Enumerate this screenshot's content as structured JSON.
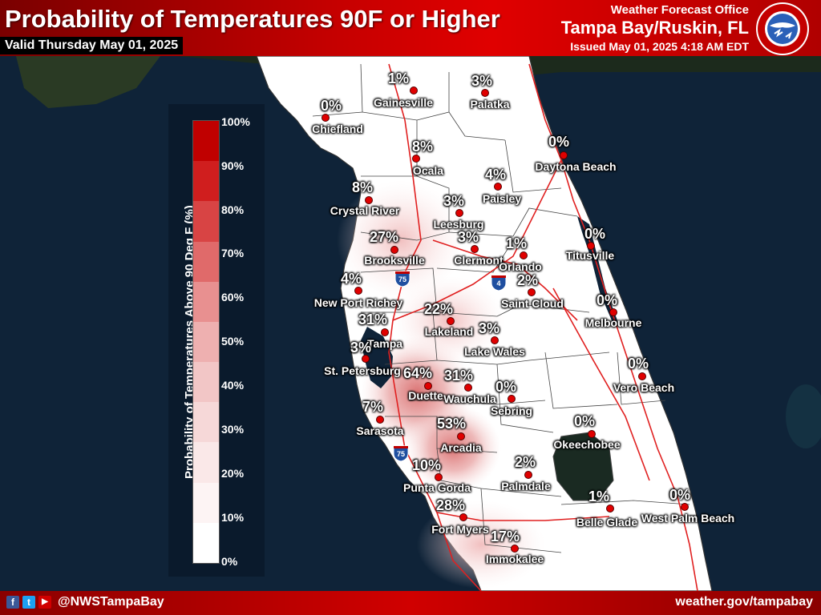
{
  "header": {
    "title": "Probability of Temperatures 90F or Higher",
    "valid": "Valid Thursday May 01, 2025",
    "office_line1": "Weather Forecast Office",
    "office_line2": "Tampa Bay/Ruskin, FL",
    "issued": "Issued May 01, 2025 4:18 AM EDT",
    "logo_icon": "nws-logo-icon"
  },
  "legend": {
    "title": "Probability of Temperatures Above 90 Deg F (%)",
    "labels": [
      "100%",
      "90%",
      "80%",
      "70%",
      "60%",
      "50%",
      "40%",
      "30%",
      "20%",
      "10%",
      "0%"
    ],
    "colors": [
      "#c00000",
      "#d01e1e",
      "#d84444",
      "#e06a6a",
      "#e89090",
      "#eeb0b0",
      "#f2c6c6",
      "#f6d8d8",
      "#fae8e8",
      "#fdf4f4",
      "#ffffff"
    ]
  },
  "cities": [
    {
      "name": "Gainesville",
      "pct": "1%"
    },
    {
      "name": "Palatka",
      "pct": "3%"
    },
    {
      "name": "Chiefland",
      "pct": "0%"
    },
    {
      "name": "Ocala",
      "pct": "8%"
    },
    {
      "name": "Daytona Beach",
      "pct": "0%"
    },
    {
      "name": "Paisley",
      "pct": "4%"
    },
    {
      "name": "Crystal River",
      "pct": "8%"
    },
    {
      "name": "Leesburg",
      "pct": "3%"
    },
    {
      "name": "Brooksville",
      "pct": "27%"
    },
    {
      "name": "Clermont",
      "pct": "3%"
    },
    {
      "name": "Orlando",
      "pct": "1%"
    },
    {
      "name": "Titusville",
      "pct": "0%"
    },
    {
      "name": "New Port Richey",
      "pct": "4%"
    },
    {
      "name": "Saint Cloud",
      "pct": "2%"
    },
    {
      "name": "Melbourne",
      "pct": "0%"
    },
    {
      "name": "Lakeland",
      "pct": "22%"
    },
    {
      "name": "Tampa",
      "pct": "31%"
    },
    {
      "name": "Lake Wales",
      "pct": "3%"
    },
    {
      "name": "St. Petersburg",
      "pct": "3%"
    },
    {
      "name": "Duette",
      "pct": "64%"
    },
    {
      "name": "Wauchula",
      "pct": "31%"
    },
    {
      "name": "Vero Beach",
      "pct": "0%"
    },
    {
      "name": "Sebring",
      "pct": "0%"
    },
    {
      "name": "Sarasota",
      "pct": "7%"
    },
    {
      "name": "Arcadia",
      "pct": "53%"
    },
    {
      "name": "Okeechobee",
      "pct": "0%"
    },
    {
      "name": "Palmdale",
      "pct": "2%"
    },
    {
      "name": "Punta Gorda",
      "pct": "10%"
    },
    {
      "name": "Belle Glade",
      "pct": "1%"
    },
    {
      "name": "West Palm Beach",
      "pct": "0%"
    },
    {
      "name": "Fort Myers",
      "pct": "28%"
    },
    {
      "name": "Immokalee",
      "pct": "17%"
    }
  ],
  "shields": [
    {
      "label": "75",
      "color": "#1f4fa0"
    },
    {
      "label": "4",
      "color": "#1f4fa0"
    },
    {
      "label": "75",
      "color": "#1f4fa0"
    }
  ],
  "footer": {
    "social_icons": [
      "facebook-icon",
      "twitter-icon",
      "youtube-icon"
    ],
    "facebook": "f",
    "twitter": "t",
    "youtube": "▶",
    "handle": "@NWSTampaBay",
    "url": "weather.gov/tampabay"
  }
}
